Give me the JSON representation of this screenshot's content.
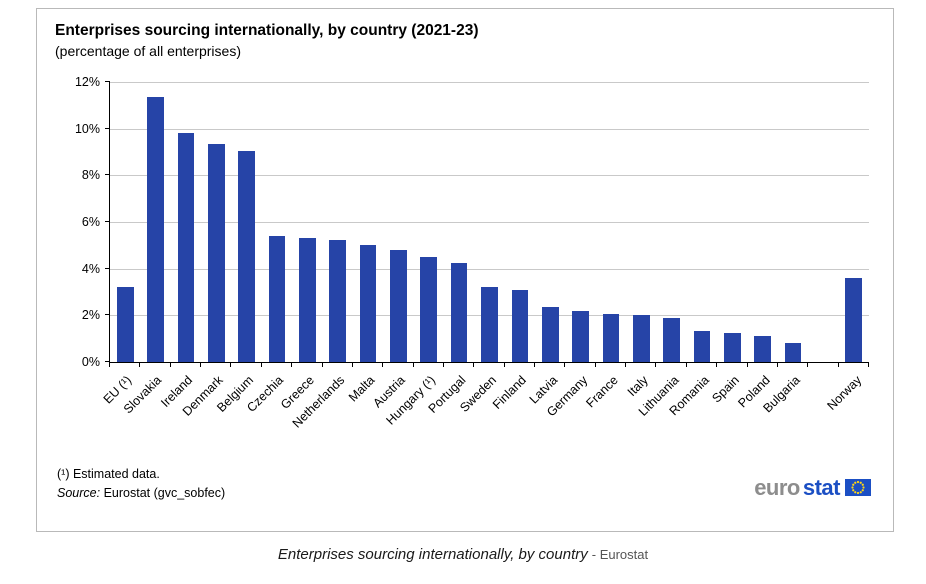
{
  "chart_data": {
    "type": "bar",
    "title": "Enterprises sourcing internationally, by country (2021-23)",
    "subtitle": "(percentage of all enterprises)",
    "categories": [
      "EU (¹)",
      "Slovakia",
      "Ireland",
      "Denmark",
      "Belgium",
      "Czechia",
      "Greece",
      "Netherlands",
      "Malta",
      "Austria",
      "Hungary (¹)",
      "Portugal",
      "Sweden",
      "Finland",
      "Latvia",
      "Germany",
      "France",
      "Italy",
      "Lithuania",
      "Romania",
      "Spain",
      "Poland",
      "Bulgaria",
      "",
      "Norway"
    ],
    "values": [
      3.2,
      11.35,
      9.8,
      9.35,
      9.05,
      5.4,
      5.3,
      5.25,
      5.0,
      4.8,
      4.5,
      4.25,
      3.2,
      3.1,
      2.35,
      2.2,
      2.05,
      2.0,
      1.9,
      1.35,
      1.25,
      1.1,
      0.8,
      null,
      3.6
    ],
    "ylim": [
      0,
      12
    ],
    "ytick_step": 2,
    "ytick_labels": [
      "0%",
      "2%",
      "4%",
      "6%",
      "8%",
      "10%",
      "12%"
    ],
    "bar_color": "#2644A7",
    "grid": true,
    "legend": "none",
    "xlabel": "",
    "ylabel": ""
  },
  "footnotes": {
    "note": "(¹) Estimated data.",
    "source_label": "Source:",
    "source_text": "Eurostat (gvc_sobfec)"
  },
  "logo": {
    "euro": "euro",
    "stat": "stat",
    "euro_color": "#8d8d8d",
    "stat_color": "#1b4fc4",
    "flag_blue": "#1b4fc4",
    "star_yellow": "#ffd617"
  },
  "caption": {
    "main": "Enterprises sourcing internationally, by country",
    "suffix": "- Eurostat"
  }
}
